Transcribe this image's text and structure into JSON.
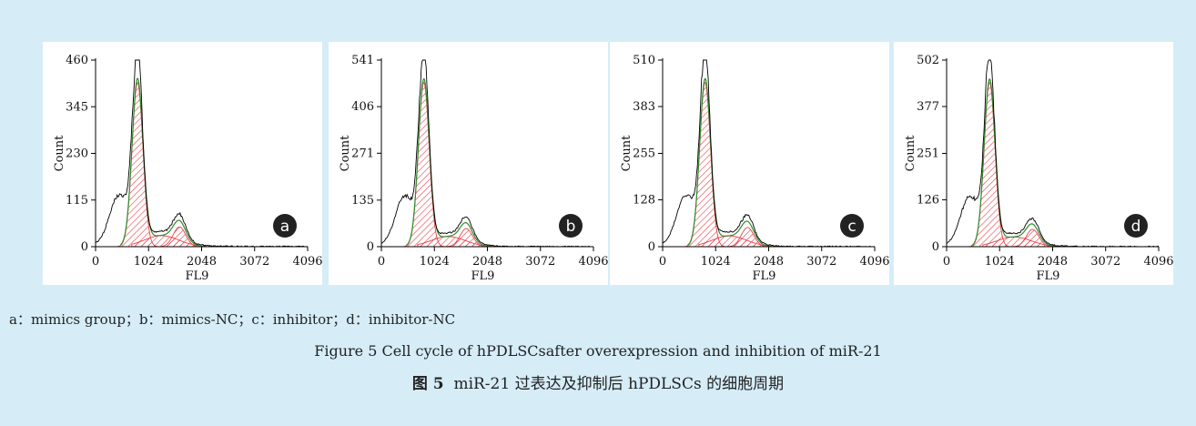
{
  "caption": {
    "note": "a：mimics group；b：mimics-NC；c：inhibitor；d：inhibitor-NC",
    "english": "Figure 5    Cell cycle of hPDLSCsafter overexpression and inhibition of miR-21",
    "chinese_label": "图 5",
    "chinese_text": "miR-21 过表达及抑制后 hPDLSCs 的细胞周期"
  },
  "colors": {
    "outline": "#000000",
    "fill": "#e8414b",
    "fit": "#2e8b2e",
    "badge": "#222222",
    "panel": "#ffffff"
  },
  "chart_data": [
    {
      "type": "area",
      "panel": "a",
      "xlabel": "FL9",
      "ylabel": "Count",
      "xlim": [
        0,
        4096
      ],
      "ylim": [
        0,
        460
      ],
      "xticks": [
        0,
        1024,
        2048,
        3072,
        4096
      ],
      "yticks": [
        0,
        115,
        230,
        345,
        460
      ],
      "g1_peak_x": 810,
      "g1_peak_y": 460,
      "g2_peak_x": 1620,
      "g2_peak_y": 65
    },
    {
      "type": "area",
      "panel": "b",
      "xlabel": "FL9",
      "ylabel": "Count",
      "xlim": [
        0,
        4096
      ],
      "ylim": [
        0,
        541
      ],
      "xticks": [
        0,
        1024,
        2048,
        3072,
        4096
      ],
      "yticks": [
        0,
        135,
        271,
        406,
        541
      ],
      "g1_peak_x": 820,
      "g1_peak_y": 541,
      "g2_peak_x": 1640,
      "g2_peak_y": 70
    },
    {
      "type": "area",
      "panel": "c",
      "xlabel": "FL9",
      "ylabel": "Count",
      "xlim": [
        0,
        4096
      ],
      "ylim": [
        0,
        510
      ],
      "xticks": [
        0,
        1024,
        2048,
        3072,
        4096
      ],
      "yticks": [
        0,
        128,
        255,
        383,
        510
      ],
      "g1_peak_x": 820,
      "g1_peak_y": 510,
      "g2_peak_x": 1640,
      "g2_peak_y": 70
    },
    {
      "type": "area",
      "panel": "d",
      "xlabel": "FL9",
      "ylabel": "Count",
      "xlim": [
        0,
        4096
      ],
      "ylim": [
        0,
        502
      ],
      "xticks": [
        0,
        1024,
        2048,
        3072,
        4096
      ],
      "yticks": [
        0,
        126,
        251,
        377,
        502
      ],
      "g1_peak_x": 830,
      "g1_peak_y": 502,
      "g2_peak_x": 1660,
      "g2_peak_y": 62
    }
  ]
}
